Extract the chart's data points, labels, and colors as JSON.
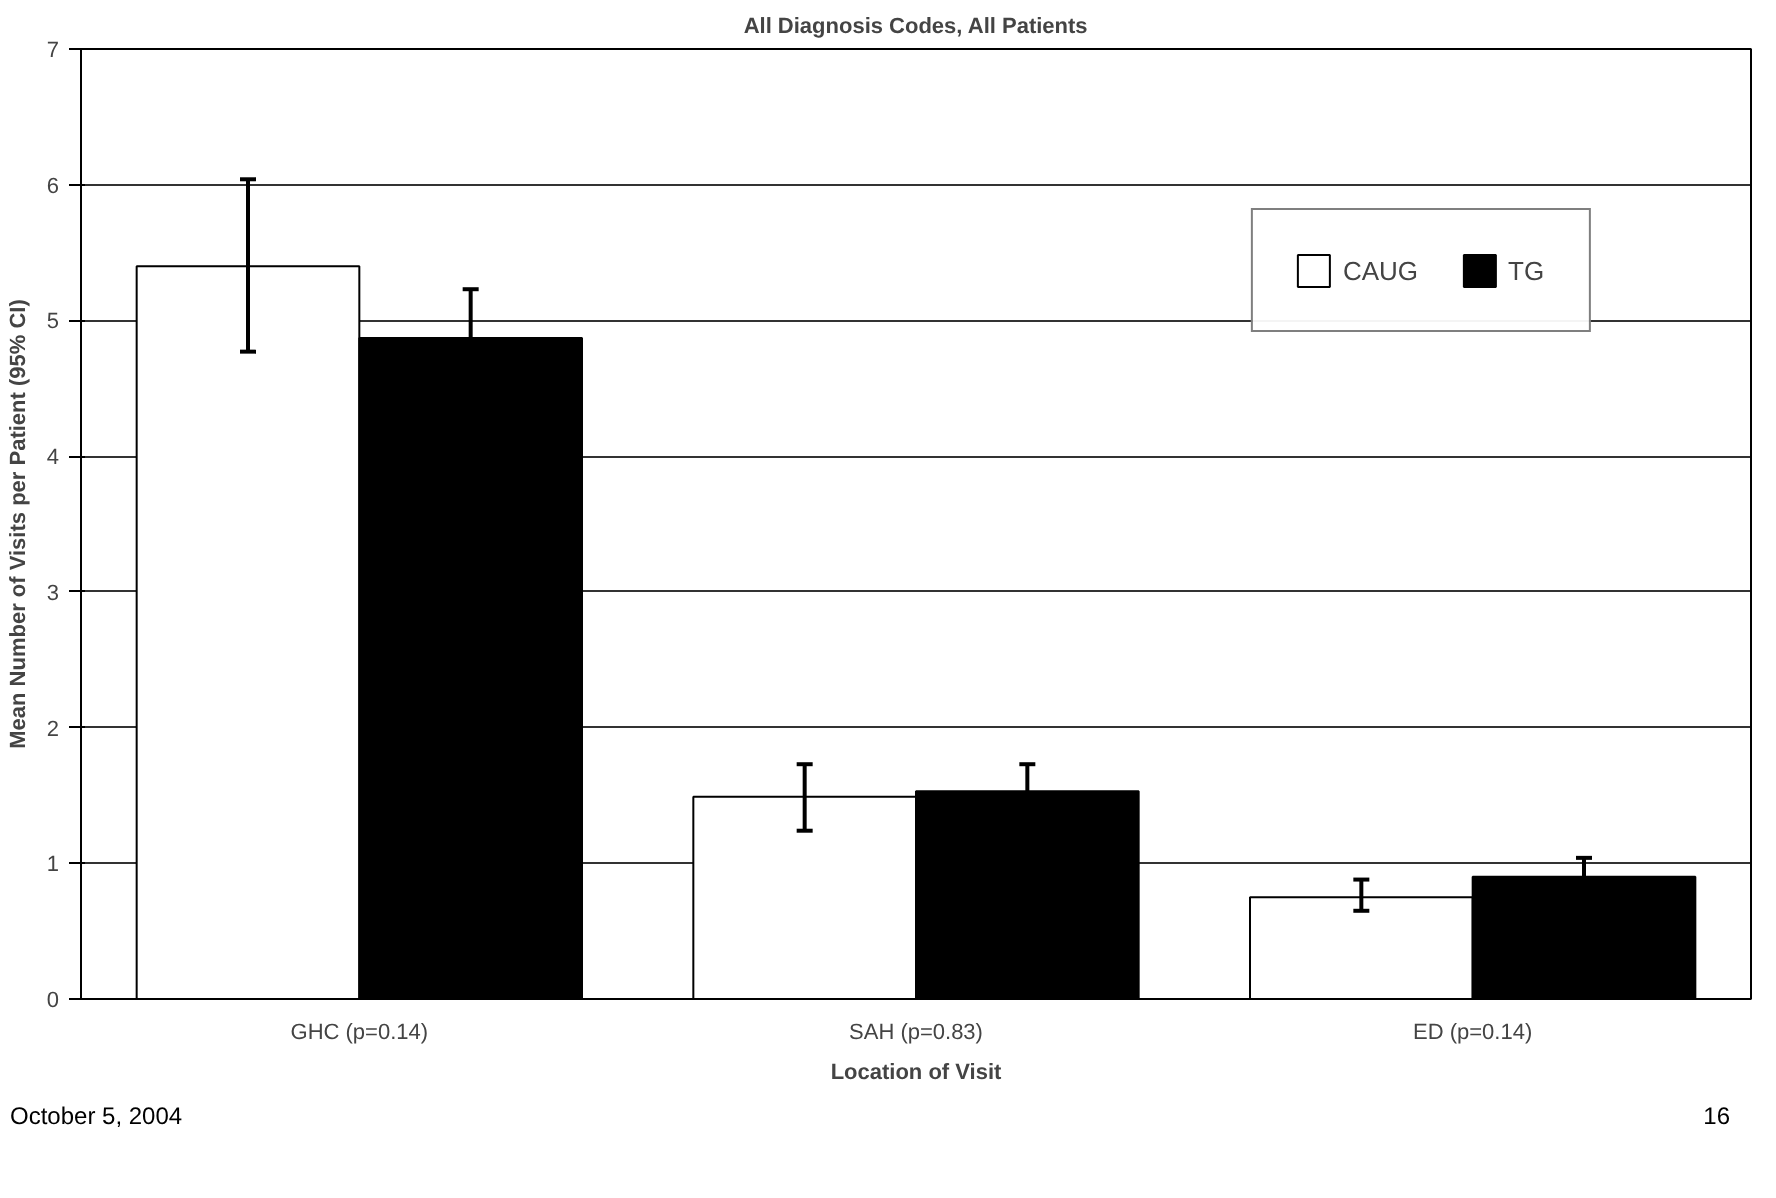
{
  "chart_data": {
    "type": "bar",
    "title": "All Diagnosis Codes, All Patients",
    "xlabel": "Location of Visit",
    "ylabel": "Mean Number of Visits per Patient (95% CI)",
    "categories": [
      "GHC (p=0.14)",
      "SAH (p=0.83)",
      "ED (p=0.14)"
    ],
    "series": [
      {
        "name": "CAUG",
        "color": "#ffffff",
        "values": [
          5.4,
          1.49,
          0.75
        ],
        "errors": [
          [
            4.77,
            6.04
          ],
          [
            1.24,
            1.73
          ],
          [
            0.65,
            0.88
          ]
        ]
      },
      {
        "name": "TG",
        "color": "#000000",
        "values": [
          4.87,
          1.53,
          0.9
        ],
        "errors": [
          0.36,
          0.2,
          0.14
        ]
      }
    ],
    "ylim": [
      0,
      7
    ],
    "yticks": [
      0,
      1,
      2,
      3,
      4,
      5,
      6,
      7
    ],
    "grid": "y",
    "legend": "top right",
    "annotations": [
      "October 5, 2004",
      "16"
    ]
  }
}
